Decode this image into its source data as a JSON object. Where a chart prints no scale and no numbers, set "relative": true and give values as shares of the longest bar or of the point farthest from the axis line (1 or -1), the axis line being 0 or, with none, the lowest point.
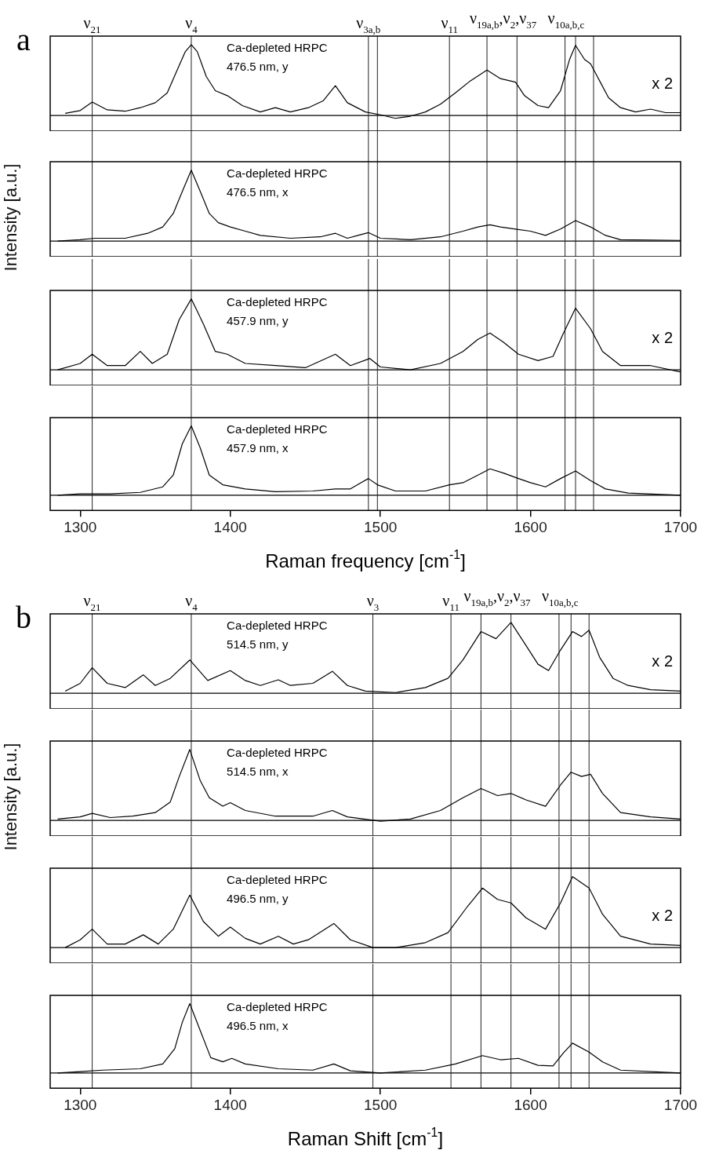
{
  "chart_data": [
    {
      "type": "line",
      "title": "a",
      "relative": true,
      "tick_labels": false,
      "xlim": [
        1280,
        1700
      ],
      "annotations": [
        "Ca-depleted HRPC",
        "476.5 nm, y",
        "x 2"
      ],
      "ref_lines": [
        {
          "axis": "x",
          "value": 1308,
          "label": "ν$_{21}$"
        },
        {
          "axis": "x",
          "value": 1374,
          "label": "ν$_{4}$"
        },
        {
          "axis": "x",
          "value": 1492,
          "label": "ν$_{3a,b}$"
        },
        {
          "axis": "x",
          "value": 1498
        },
        {
          "axis": "x",
          "value": 1546,
          "label": "ν$_{11}$"
        },
        {
          "axis": "x",
          "value": 1571,
          "label": "ν$_{19a,b}$,ν$_{2}$,ν$_{37}$"
        },
        {
          "axis": "x",
          "value": 1591
        },
        {
          "axis": "x",
          "value": 1623,
          "label": "ν$_{10a,b,c}$"
        },
        {
          "axis": "x",
          "value": 1630
        },
        {
          "axis": "x",
          "value": 1642
        }
      ],
      "x": [
        1290,
        1300,
        1308,
        1318,
        1330,
        1340,
        1350,
        1358,
        1365,
        1370,
        1374,
        1378,
        1384,
        1390,
        1398,
        1408,
        1420,
        1430,
        1440,
        1452,
        1462,
        1470,
        1478,
        1490,
        1500,
        1510,
        1520,
        1530,
        1540,
        1550,
        1560,
        1571,
        1580,
        1590,
        1596,
        1605,
        1612,
        1620,
        1626,
        1630,
        1636,
        1640,
        1646,
        1652,
        1660,
        1670,
        1680,
        1690,
        1700
      ],
      "series": [
        {
          "color": "#000000",
          "values": [
            0.03,
            0.07,
            0.19,
            0.08,
            0.06,
            0.11,
            0.18,
            0.32,
            0.66,
            0.9,
            1.0,
            0.9,
            0.55,
            0.35,
            0.28,
            0.14,
            0.05,
            0.11,
            0.05,
            0.11,
            0.21,
            0.42,
            0.18,
            0.05,
            0.01,
            -0.04,
            -0.01,
            0.05,
            0.16,
            0.32,
            0.49,
            0.64,
            0.52,
            0.47,
            0.28,
            0.14,
            0.11,
            0.35,
            0.79,
            0.99,
            0.79,
            0.73,
            0.49,
            0.25,
            0.11,
            0.05,
            0.09,
            0.04,
            0.04
          ]
        }
      ]
    },
    {
      "type": "line",
      "ylabel": "Intensity [a.u.]",
      "relative": true,
      "tick_labels": false,
      "xlim": [
        1280,
        1700
      ],
      "annotations": [
        "Ca-depleted HRPC",
        "476.5 nm, x"
      ],
      "ref_lines": [
        {
          "axis": "x",
          "value": 1308
        },
        {
          "axis": "x",
          "value": 1374
        },
        {
          "axis": "x",
          "value": 1492
        },
        {
          "axis": "x",
          "value": 1498
        },
        {
          "axis": "x",
          "value": 1546
        },
        {
          "axis": "x",
          "value": 1571
        },
        {
          "axis": "x",
          "value": 1591
        },
        {
          "axis": "x",
          "value": 1623
        },
        {
          "axis": "x",
          "value": 1630
        },
        {
          "axis": "x",
          "value": 1642
        }
      ],
      "x": [
        1285,
        1300,
        1310,
        1330,
        1345,
        1355,
        1362,
        1368,
        1374,
        1380,
        1386,
        1392,
        1400,
        1410,
        1420,
        1440,
        1460,
        1470,
        1478,
        1485,
        1492,
        1500,
        1520,
        1540,
        1555,
        1565,
        1573,
        1580,
        1590,
        1600,
        1610,
        1620,
        1630,
        1640,
        1650,
        1660,
        1700
      ],
      "series": [
        {
          "color": "#000000",
          "values": [
            0.0,
            0.02,
            0.04,
            0.04,
            0.11,
            0.2,
            0.39,
            0.7,
            1.0,
            0.7,
            0.39,
            0.26,
            0.2,
            0.14,
            0.08,
            0.04,
            0.06,
            0.11,
            0.04,
            0.08,
            0.12,
            0.04,
            0.02,
            0.06,
            0.14,
            0.2,
            0.23,
            0.2,
            0.17,
            0.14,
            0.08,
            0.17,
            0.29,
            0.2,
            0.08,
            0.02,
            0.01
          ]
        }
      ]
    },
    {
      "type": "line",
      "relative": true,
      "tick_labels": false,
      "xlim": [
        1280,
        1700
      ],
      "annotations": [
        "Ca-depleted HRPC",
        "457.9 nm, y",
        "x 2"
      ],
      "ref_lines": [
        {
          "axis": "x",
          "value": 1308
        },
        {
          "axis": "x",
          "value": 1374
        },
        {
          "axis": "x",
          "value": 1492
        },
        {
          "axis": "x",
          "value": 1498
        },
        {
          "axis": "x",
          "value": 1546
        },
        {
          "axis": "x",
          "value": 1571
        },
        {
          "axis": "x",
          "value": 1591
        },
        {
          "axis": "x",
          "value": 1623
        },
        {
          "axis": "x",
          "value": 1630
        },
        {
          "axis": "x",
          "value": 1642
        }
      ],
      "x": [
        1285,
        1300,
        1308,
        1318,
        1330,
        1340,
        1348,
        1358,
        1366,
        1374,
        1382,
        1390,
        1398,
        1410,
        1430,
        1450,
        1470,
        1480,
        1493,
        1500,
        1520,
        1540,
        1555,
        1565,
        1573,
        1582,
        1592,
        1605,
        1615,
        1622,
        1630,
        1640,
        1648,
        1660,
        1680,
        1700
      ],
      "series": [
        {
          "color": "#000000",
          "values": [
            0.0,
            0.09,
            0.22,
            0.06,
            0.06,
            0.26,
            0.09,
            0.22,
            0.71,
            1.0,
            0.65,
            0.26,
            0.22,
            0.09,
            0.06,
            0.03,
            0.22,
            0.06,
            0.16,
            0.04,
            0.0,
            0.09,
            0.26,
            0.43,
            0.52,
            0.39,
            0.22,
            0.13,
            0.19,
            0.52,
            0.87,
            0.58,
            0.26,
            0.06,
            0.06,
            -0.03
          ]
        }
      ]
    },
    {
      "type": "line",
      "xlabel": "Raman frequency [cm$^{-1}$]",
      "relative": true,
      "tick_labels": "x",
      "xlim": [
        1280,
        1700
      ],
      "xticks": [
        1300,
        1400,
        1500,
        1600,
        1700
      ],
      "annotations": [
        "Ca-depleted HRPC",
        "457.9 nm, x"
      ],
      "ref_lines": [
        {
          "axis": "x",
          "value": 1308
        },
        {
          "axis": "x",
          "value": 1374
        },
        {
          "axis": "x",
          "value": 1492
        },
        {
          "axis": "x",
          "value": 1498
        },
        {
          "axis": "x",
          "value": 1546
        },
        {
          "axis": "x",
          "value": 1571
        },
        {
          "axis": "x",
          "value": 1591
        },
        {
          "axis": "x",
          "value": 1623
        },
        {
          "axis": "x",
          "value": 1630
        },
        {
          "axis": "x",
          "value": 1642
        }
      ],
      "x": [
        1285,
        1300,
        1320,
        1340,
        1355,
        1362,
        1368,
        1374,
        1380,
        1386,
        1395,
        1410,
        1430,
        1455,
        1470,
        1480,
        1487,
        1492,
        1498,
        1510,
        1530,
        1546,
        1555,
        1565,
        1573,
        1582,
        1592,
        1600,
        1610,
        1620,
        1630,
        1640,
        1650,
        1665,
        1700
      ],
      "series": [
        {
          "color": "#000000",
          "values": [
            0.0,
            0.02,
            0.02,
            0.04,
            0.12,
            0.29,
            0.74,
            1.0,
            0.68,
            0.29,
            0.15,
            0.09,
            0.05,
            0.06,
            0.09,
            0.09,
            0.18,
            0.24,
            0.15,
            0.06,
            0.06,
            0.15,
            0.18,
            0.29,
            0.38,
            0.32,
            0.24,
            0.18,
            0.12,
            0.24,
            0.35,
            0.21,
            0.09,
            0.03,
            0.0
          ]
        }
      ]
    },
    {
      "type": "line",
      "title": "b",
      "relative": true,
      "tick_labels": false,
      "xlim": [
        1280,
        1700
      ],
      "annotations": [
        "Ca-depleted HRPC",
        "514.5 nm, y",
        "x 2"
      ],
      "ref_lines": [
        {
          "axis": "x",
          "value": 1308,
          "label": "ν$_{21}$"
        },
        {
          "axis": "x",
          "value": 1374,
          "label": "ν$_{4}$"
        },
        {
          "axis": "x",
          "value": 1495,
          "label": "ν$_{3}$"
        },
        {
          "axis": "x",
          "value": 1547,
          "label": "ν$_{11}$"
        },
        {
          "axis": "x",
          "value": 1567,
          "label": "ν$_{19a,b}$,ν$_{2}$,ν$_{37}$"
        },
        {
          "axis": "x",
          "value": 1587
        },
        {
          "axis": "x",
          "value": 1619,
          "label": "ν$_{10a,b,c}$"
        },
        {
          "axis": "x",
          "value": 1627
        },
        {
          "axis": "x",
          "value": 1639
        }
      ],
      "x": [
        1290,
        1300,
        1308,
        1318,
        1330,
        1342,
        1350,
        1360,
        1373,
        1385,
        1400,
        1410,
        1420,
        1432,
        1440,
        1455,
        1468,
        1478,
        1490,
        1510,
        1530,
        1545,
        1555,
        1567,
        1577,
        1587,
        1595,
        1605,
        1612,
        1620,
        1628,
        1634,
        1639,
        1646,
        1655,
        1665,
        1680,
        1700
      ],
      "series": [
        {
          "color": "#000000",
          "values": [
            0.03,
            0.14,
            0.36,
            0.14,
            0.08,
            0.26,
            0.11,
            0.21,
            0.47,
            0.18,
            0.32,
            0.18,
            0.11,
            0.19,
            0.11,
            0.14,
            0.31,
            0.11,
            0.03,
            0.01,
            0.08,
            0.21,
            0.47,
            0.87,
            0.77,
            1.0,
            0.74,
            0.41,
            0.32,
            0.61,
            0.87,
            0.8,
            0.89,
            0.51,
            0.21,
            0.11,
            0.05,
            0.03
          ]
        }
      ]
    },
    {
      "type": "line",
      "ylabel": "Intensity [a.u.]",
      "relative": true,
      "tick_labels": false,
      "xlim": [
        1280,
        1700
      ],
      "annotations": [
        "Ca-depleted HRPC",
        "514.5 nm, x"
      ],
      "ref_lines": [
        {
          "axis": "x",
          "value": 1308
        },
        {
          "axis": "x",
          "value": 1374
        },
        {
          "axis": "x",
          "value": 1495
        },
        {
          "axis": "x",
          "value": 1547
        },
        {
          "axis": "x",
          "value": 1567
        },
        {
          "axis": "x",
          "value": 1587
        },
        {
          "axis": "x",
          "value": 1619
        },
        {
          "axis": "x",
          "value": 1627
        },
        {
          "axis": "x",
          "value": 1639
        }
      ],
      "x": [
        1285,
        1300,
        1308,
        1320,
        1335,
        1350,
        1360,
        1366,
        1373,
        1380,
        1386,
        1395,
        1400,
        1410,
        1430,
        1455,
        1468,
        1478,
        1500,
        1520,
        1540,
        1555,
        1567,
        1578,
        1587,
        1597,
        1610,
        1620,
        1627,
        1634,
        1640,
        1648,
        1660,
        1680,
        1700
      ],
      "series": [
        {
          "color": "#000000",
          "values": [
            0.02,
            0.05,
            0.1,
            0.04,
            0.06,
            0.11,
            0.26,
            0.62,
            1.0,
            0.56,
            0.32,
            0.2,
            0.25,
            0.14,
            0.06,
            0.06,
            0.14,
            0.05,
            -0.01,
            0.02,
            0.14,
            0.32,
            0.45,
            0.35,
            0.38,
            0.29,
            0.2,
            0.5,
            0.68,
            0.62,
            0.65,
            0.38,
            0.11,
            0.05,
            0.02
          ]
        }
      ]
    },
    {
      "type": "line",
      "relative": true,
      "tick_labels": false,
      "xlim": [
        1280,
        1700
      ],
      "annotations": [
        "Ca-depleted HRPC",
        "496.5 nm, y",
        "x 2"
      ],
      "ref_lines": [
        {
          "axis": "x",
          "value": 1308
        },
        {
          "axis": "x",
          "value": 1374
        },
        {
          "axis": "x",
          "value": 1495
        },
        {
          "axis": "x",
          "value": 1547
        },
        {
          "axis": "x",
          "value": 1567
        },
        {
          "axis": "x",
          "value": 1587
        },
        {
          "axis": "x",
          "value": 1619
        },
        {
          "axis": "x",
          "value": 1627
        },
        {
          "axis": "x",
          "value": 1639
        }
      ],
      "x": [
        1290,
        1300,
        1308,
        1318,
        1330,
        1342,
        1352,
        1362,
        1373,
        1382,
        1392,
        1400,
        1410,
        1420,
        1432,
        1442,
        1452,
        1469,
        1480,
        1495,
        1510,
        1530,
        1545,
        1558,
        1568,
        1578,
        1587,
        1597,
        1610,
        1620,
        1628,
        1639,
        1648,
        1660,
        1680,
        1700
      ],
      "series": [
        {
          "color": "#000000",
          "values": [
            0.0,
            0.11,
            0.26,
            0.05,
            0.05,
            0.18,
            0.05,
            0.26,
            0.74,
            0.37,
            0.16,
            0.29,
            0.13,
            0.05,
            0.16,
            0.05,
            0.11,
            0.34,
            0.11,
            0.0,
            0.0,
            0.07,
            0.21,
            0.58,
            0.84,
            0.68,
            0.63,
            0.42,
            0.26,
            0.63,
            1.0,
            0.84,
            0.47,
            0.16,
            0.05,
            0.03
          ]
        }
      ]
    },
    {
      "type": "line",
      "xlabel": "Raman Shift [cm$^{-1}$]",
      "relative": true,
      "tick_labels": "x",
      "xlim": [
        1280,
        1700
      ],
      "xticks": [
        1300,
        1400,
        1500,
        1600,
        1700
      ],
      "annotations": [
        "Ca-depleted HRPC",
        "496.5 nm, x"
      ],
      "ref_lines": [
        {
          "axis": "x",
          "value": 1308
        },
        {
          "axis": "x",
          "value": 1374
        },
        {
          "axis": "x",
          "value": 1495
        },
        {
          "axis": "x",
          "value": 1547
        },
        {
          "axis": "x",
          "value": 1567
        },
        {
          "axis": "x",
          "value": 1587
        },
        {
          "axis": "x",
          "value": 1619
        },
        {
          "axis": "x",
          "value": 1627
        },
        {
          "axis": "x",
          "value": 1639
        }
      ],
      "x": [
        1285,
        1300,
        1315,
        1340,
        1355,
        1363,
        1368,
        1373,
        1380,
        1387,
        1395,
        1401,
        1410,
        1432,
        1455,
        1469,
        1480,
        1500,
        1530,
        1550,
        1568,
        1580,
        1592,
        1605,
        1615,
        1622,
        1628,
        1639,
        1648,
        1660,
        1700
      ],
      "series": [
        {
          "color": "#000000",
          "values": [
            0.0,
            0.02,
            0.04,
            0.06,
            0.13,
            0.35,
            0.73,
            1.0,
            0.61,
            0.22,
            0.16,
            0.21,
            0.13,
            0.06,
            0.04,
            0.13,
            0.03,
            0.0,
            0.04,
            0.13,
            0.25,
            0.19,
            0.21,
            0.11,
            0.1,
            0.29,
            0.43,
            0.3,
            0.16,
            0.04,
            0.0
          ]
        }
      ]
    }
  ]
}
